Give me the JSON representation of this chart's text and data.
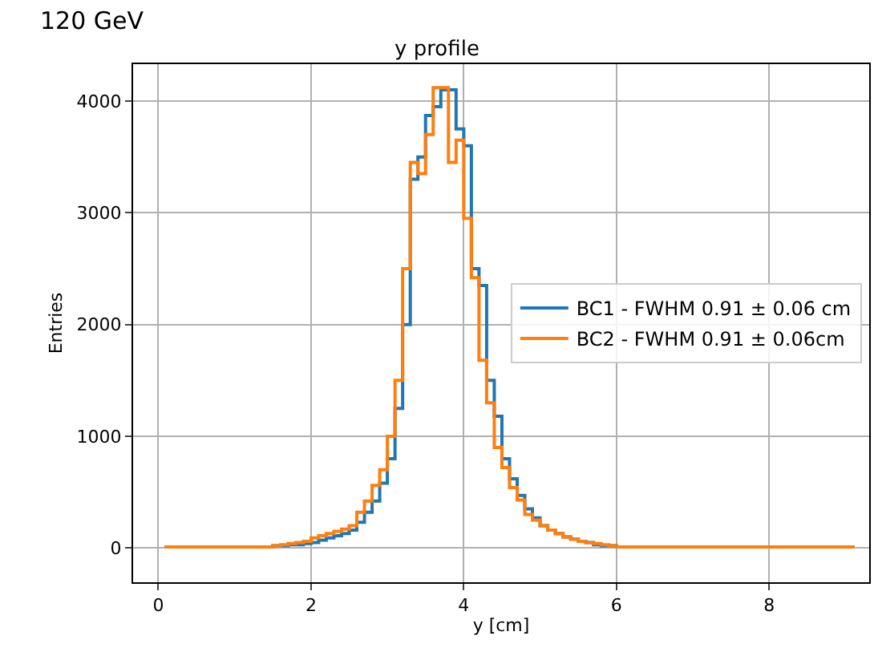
{
  "chart_data": {
    "type": "histogram",
    "title": "y profile",
    "xlabel": "y [cm]",
    "ylabel": "Entries",
    "annotations": [
      "120 GeV"
    ],
    "bins": [
      0.1,
      1.0,
      1.5,
      1.6,
      1.7,
      1.8,
      1.9,
      2.0,
      2.1,
      2.2,
      2.3,
      2.4,
      2.5,
      2.6,
      2.7,
      2.8,
      2.9,
      3.0,
      3.1,
      3.2,
      3.3,
      3.4,
      3.5,
      3.6,
      3.7,
      3.8,
      3.9,
      4.0,
      4.1,
      4.2,
      4.3,
      4.4,
      4.5,
      4.6,
      4.7,
      4.8,
      4.9,
      5.0,
      5.1,
      5.2,
      5.3,
      5.4,
      5.5,
      5.6,
      5.7,
      5.8,
      5.9,
      6.0,
      7.0,
      9.1
    ],
    "series": [
      {
        "name": "BC1 - FWHM 0.91 ± 0.06 cm",
        "color": "#1f77b4",
        "values": [
          10,
          10,
          20,
          20,
          30,
          30,
          40,
          50,
          70,
          90,
          110,
          130,
          160,
          230,
          320,
          420,
          580,
          800,
          1250,
          2000,
          3300,
          3500,
          3870,
          3950,
          4100,
          4100,
          3750,
          3600,
          2500,
          2350,
          1500,
          1180,
          800,
          620,
          470,
          350,
          270,
          200,
          160,
          130,
          100,
          80,
          60,
          50,
          30,
          20,
          20,
          10,
          10
        ]
      },
      {
        "name": "BC2 - FWHM 0.91 ± 0.06cm",
        "color": "#ff7f0e",
        "values": [
          10,
          10,
          20,
          30,
          40,
          50,
          60,
          90,
          110,
          130,
          150,
          170,
          200,
          320,
          420,
          560,
          700,
          1000,
          1500,
          2500,
          3450,
          3350,
          3700,
          4120,
          4120,
          3450,
          3650,
          2950,
          2420,
          1680,
          1300,
          900,
          720,
          540,
          430,
          300,
          250,
          200,
          160,
          130,
          100,
          80,
          60,
          50,
          40,
          30,
          20,
          10,
          10
        ]
      }
    ],
    "xlim": [
      -0.33,
      9.31
    ],
    "xticks": [
      0,
      2,
      4,
      6,
      8
    ],
    "ylim": [
      -306,
      4330
    ],
    "yticks": [
      0,
      1000,
      2000,
      3000,
      4000
    ],
    "grid": true,
    "legend": "right"
  }
}
